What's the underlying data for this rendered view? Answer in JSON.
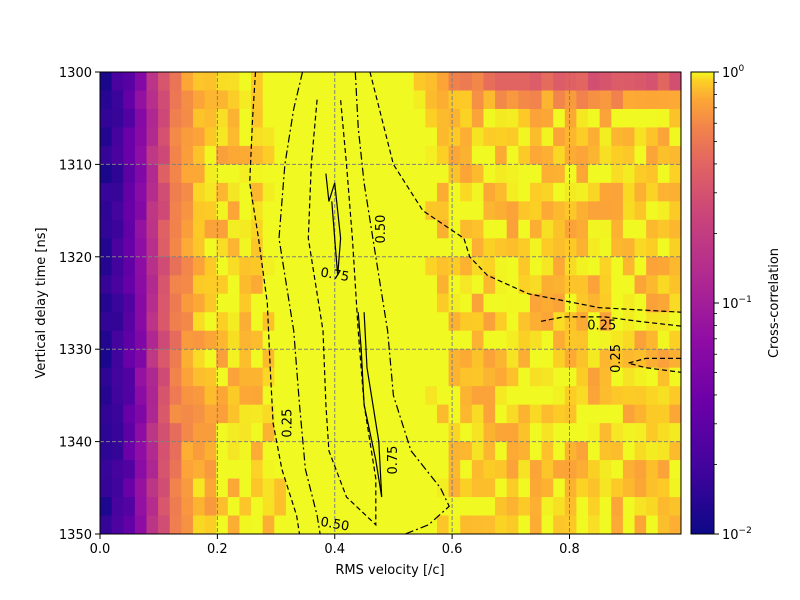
{
  "chart_data": {
    "type": "heatmap",
    "title": "",
    "xlabel": "RMS velocity [/c]",
    "ylabel": "Vertical delay time [ns]",
    "xlim": [
      0,
      0.99
    ],
    "ylim": [
      1350,
      1300
    ],
    "x_ticks": [
      0.0,
      0.2,
      0.4,
      0.6,
      0.8
    ],
    "x_tick_labels": [
      "0.0",
      "0.2",
      "0.4",
      "0.6",
      "0.8"
    ],
    "y_ticks": [
      1300,
      1310,
      1320,
      1330,
      1340,
      1350
    ],
    "y_tick_labels": [
      "1300",
      "1310",
      "1320",
      "1330",
      "1340",
      "1350"
    ],
    "grid": true,
    "colormap": "plasma",
    "color_scale": "log",
    "colorbar": {
      "label": "Cross-correlation",
      "range": [
        0.01,
        1
      ],
      "tick_values": [
        1,
        0.1,
        0.01
      ],
      "tick_bases": [
        "10",
        "10",
        "10"
      ],
      "tick_exponents": [
        "0",
        "−1",
        "−2"
      ]
    },
    "contour_levels": [
      0.25,
      0.5,
      0.75,
      0.9
    ],
    "contour_labels": [
      {
        "text": "0.25",
        "x": 0.32,
        "y": 1338,
        "rotation": -90
      },
      {
        "text": "0.25",
        "x": 0.855,
        "y": 1327.5,
        "rotation": 0
      },
      {
        "text": "0.25",
        "x": 0.88,
        "y": 1331,
        "rotation": -90
      },
      {
        "text": "0.50",
        "x": 0.48,
        "y": 1317,
        "rotation": -90
      },
      {
        "text": "0.50",
        "x": 0.4,
        "y": 1349,
        "rotation": 10
      },
      {
        "text": "0.75",
        "x": 0.4,
        "y": 1322,
        "rotation": 10
      },
      {
        "text": "0.75",
        "x": 0.5,
        "y": 1342,
        "rotation": -90
      }
    ]
  }
}
